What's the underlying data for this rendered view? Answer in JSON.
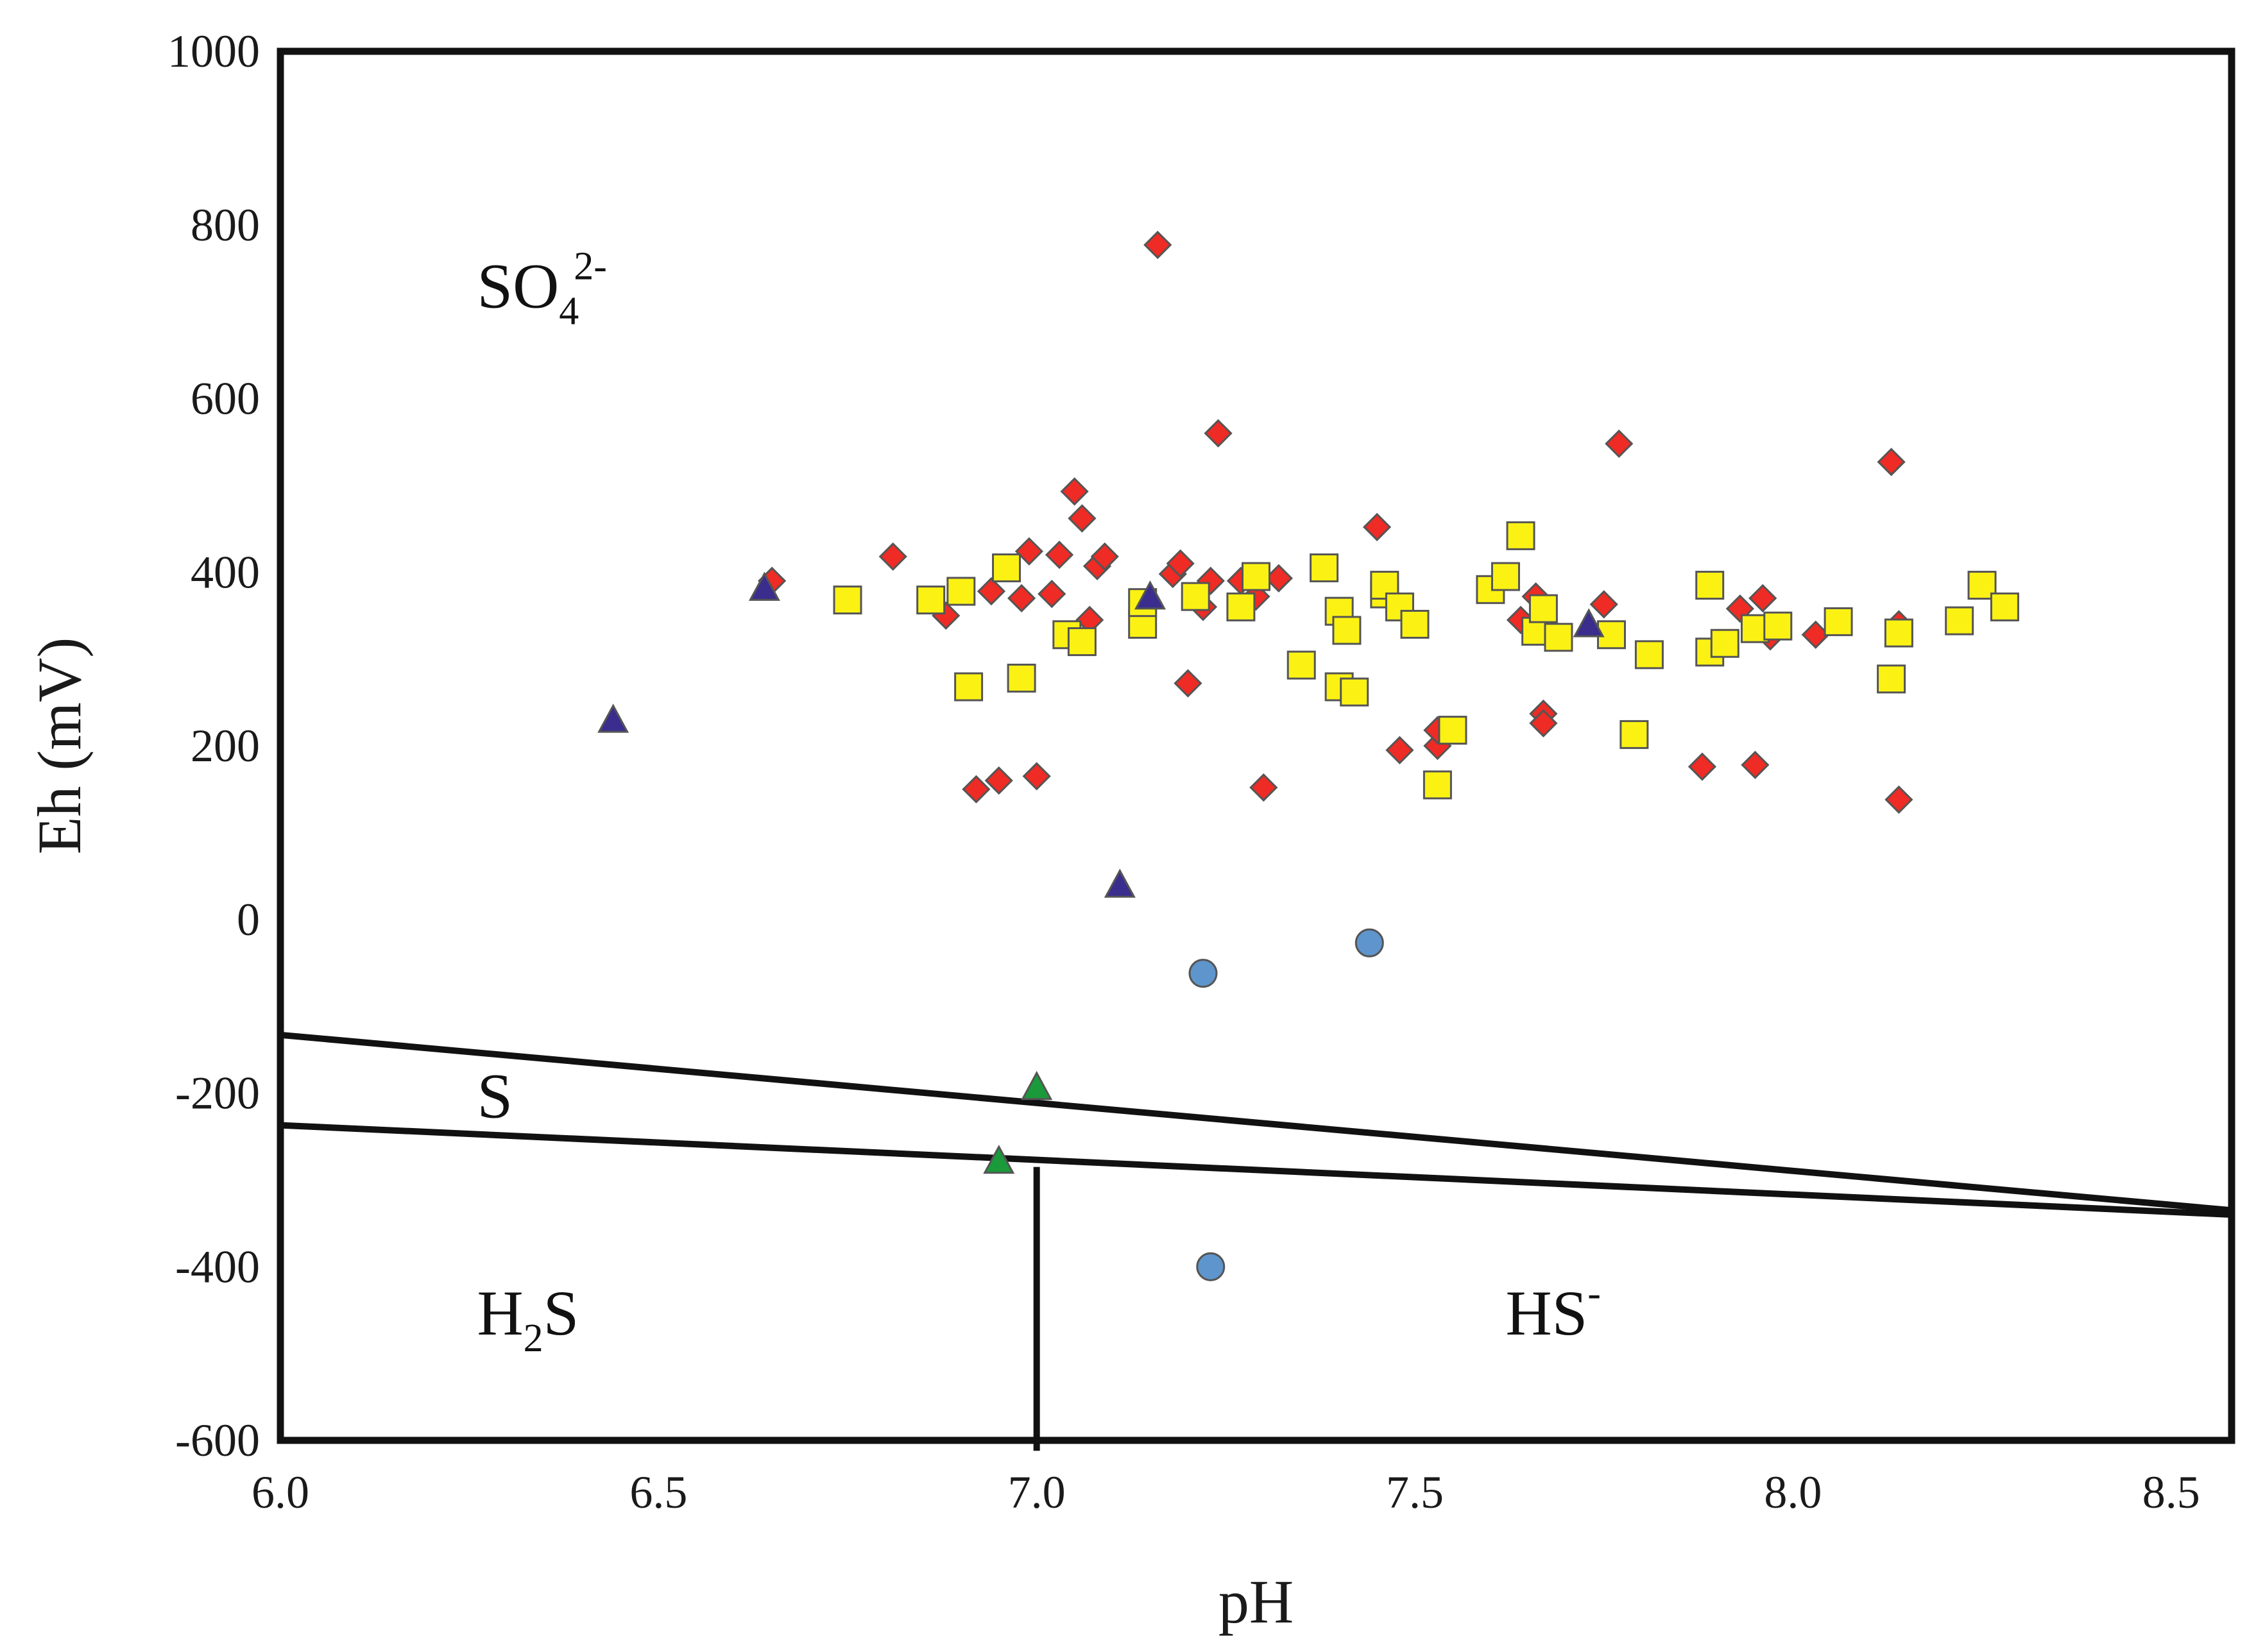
{
  "chart_data": {
    "type": "scatter",
    "title": "",
    "xlabel": "pH",
    "ylabel": "Eh (mV)",
    "xlim": [
      6.0,
      8.58
    ],
    "ylim": [
      -600,
      1000
    ],
    "x_ticks": [
      "6.0",
      "6.5",
      "7.0",
      "7.5",
      "8.0",
      "8.5"
    ],
    "x_tick_values": [
      6.0,
      6.5,
      7.0,
      7.5,
      8.0,
      8.5
    ],
    "y_ticks": [
      "1000",
      "800",
      "600",
      "400",
      "200",
      "0",
      "-200",
      "-400",
      "-600"
    ],
    "y_tick_values": [
      1000,
      800,
      600,
      400,
      200,
      0,
      -200,
      -400,
      -600
    ],
    "grid": false,
    "regions": [
      {
        "key": "so4",
        "base": "SO",
        "sub": "4",
        "sup": "2-",
        "at_x": 6.26,
        "at_y": 705
      },
      {
        "key": "s",
        "base": "S",
        "sub": "",
        "sup": "",
        "at_x": 6.26,
        "at_y": -228
      },
      {
        "key": "h2s",
        "base": "H",
        "sub": "2",
        "rest": "S",
        "sup": "",
        "at_x": 6.26,
        "at_y": -478
      },
      {
        "key": "hs",
        "base": "HS",
        "sub": "",
        "sup": "-",
        "at_x": 7.62,
        "at_y": -478
      }
    ],
    "boundaries": [
      {
        "name": "SO4-S boundary",
        "points": [
          [
            6.0,
            -133
          ],
          [
            8.58,
            -335
          ]
        ]
      },
      {
        "name": "S-sulfide boundary",
        "points": [
          [
            6.0,
            -237
          ],
          [
            8.58,
            -340
          ]
        ]
      },
      {
        "name": "H2S-HS boundary",
        "points": [
          [
            7.0,
            -285
          ],
          [
            7.0,
            -612
          ]
        ]
      }
    ],
    "series": [
      {
        "name": "diamonds",
        "marker": "diamond",
        "color": "#ee2b24",
        "points": [
          [
            6.65,
            390
          ],
          [
            6.81,
            418
          ],
          [
            6.88,
            350
          ],
          [
            6.92,
            150
          ],
          [
            6.95,
            160
          ],
          [
            6.94,
            378
          ],
          [
            6.98,
            370
          ],
          [
            6.99,
            424
          ],
          [
            7.0,
            165
          ],
          [
            7.02,
            375
          ],
          [
            7.03,
            420
          ],
          [
            7.05,
            493
          ],
          [
            7.06,
            462
          ],
          [
            7.07,
            345
          ],
          [
            7.08,
            407
          ],
          [
            7.09,
            418
          ],
          [
            7.16,
            777
          ],
          [
            7.18,
            398
          ],
          [
            7.19,
            410
          ],
          [
            7.2,
            272
          ],
          [
            7.22,
            360
          ],
          [
            7.23,
            390
          ],
          [
            7.24,
            560
          ],
          [
            7.27,
            390
          ],
          [
            7.29,
            372
          ],
          [
            7.3,
            152
          ],
          [
            7.32,
            393
          ],
          [
            7.45,
            452
          ],
          [
            7.48,
            195
          ],
          [
            7.53,
            200
          ],
          [
            7.53,
            218
          ],
          [
            7.64,
            345
          ],
          [
            7.66,
            372
          ],
          [
            7.67,
            237
          ],
          [
            7.67,
            226
          ],
          [
            7.75,
            363
          ],
          [
            7.77,
            548
          ],
          [
            7.88,
            176
          ],
          [
            7.93,
            358
          ],
          [
            7.95,
            178
          ],
          [
            7.96,
            370
          ],
          [
            7.97,
            326
          ],
          [
            8.03,
            328
          ],
          [
            8.13,
            527
          ],
          [
            8.14,
            138
          ],
          [
            8.14,
            340
          ]
        ]
      },
      {
        "name": "squares",
        "marker": "square",
        "color": "#fbf214",
        "points": [
          [
            6.75,
            368
          ],
          [
            6.86,
            368
          ],
          [
            6.9,
            378
          ],
          [
            6.91,
            268
          ],
          [
            6.96,
            405
          ],
          [
            6.98,
            278
          ],
          [
            7.04,
            328
          ],
          [
            7.06,
            320
          ],
          [
            7.14,
            340
          ],
          [
            7.14,
            365
          ],
          [
            7.21,
            372
          ],
          [
            7.27,
            360
          ],
          [
            7.29,
            395
          ],
          [
            7.35,
            293
          ],
          [
            7.38,
            405
          ],
          [
            7.4,
            355
          ],
          [
            7.4,
            268
          ],
          [
            7.41,
            333
          ],
          [
            7.42,
            262
          ],
          [
            7.46,
            375
          ],
          [
            7.46,
            385
          ],
          [
            7.48,
            360
          ],
          [
            7.5,
            340
          ],
          [
            7.53,
            155
          ],
          [
            7.55,
            218
          ],
          [
            7.6,
            380
          ],
          [
            7.62,
            395
          ],
          [
            7.64,
            442
          ],
          [
            7.66,
            332
          ],
          [
            7.67,
            358
          ],
          [
            7.69,
            325
          ],
          [
            7.76,
            328
          ],
          [
            7.79,
            213
          ],
          [
            7.81,
            305
          ],
          [
            7.89,
            385
          ],
          [
            7.89,
            308
          ],
          [
            7.91,
            318
          ],
          [
            7.95,
            335
          ],
          [
            7.98,
            338
          ],
          [
            8.06,
            343
          ],
          [
            8.13,
            277
          ],
          [
            8.14,
            330
          ],
          [
            8.22,
            344
          ],
          [
            8.25,
            385
          ],
          [
            8.28,
            360
          ]
        ]
      },
      {
        "name": "purple triangles",
        "marker": "triangle",
        "color": "#3a2d8e",
        "points": [
          [
            6.44,
            230
          ],
          [
            6.64,
            382
          ],
          [
            7.11,
            40
          ],
          [
            7.15,
            372
          ],
          [
            7.73,
            340
          ]
        ]
      },
      {
        "name": "green triangles",
        "marker": "triangle",
        "color": "#1a9a3a",
        "points": [
          [
            6.95,
            -278
          ],
          [
            7.0,
            -193
          ]
        ]
      },
      {
        "name": "circles",
        "marker": "circle",
        "color": "#5e95cd",
        "points": [
          [
            7.22,
            -62
          ],
          [
            7.44,
            -27
          ],
          [
            7.23,
            -400
          ]
        ]
      }
    ]
  }
}
